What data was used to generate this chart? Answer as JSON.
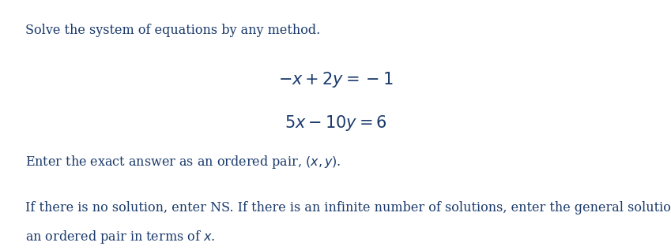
{
  "bg_color": "#ffffff",
  "text_color": "#1a3a6b",
  "line1": "Solve the system of equations by any method.",
  "eq1": "$-x + 2y = -1$",
  "eq2": "$5x - 10y = 6$",
  "line2": "Enter the exact answer as an ordered pair, $(x, y)$.",
  "line3": "If there is no solution, enter NS. If there is an infinite number of solutions, enter the general solution as",
  "line4": "an ordered pair in terms of $x$.",
  "font_size_main": 11.5,
  "font_size_eq": 15,
  "fig_width": 8.49,
  "fig_height": 3.17,
  "dpi": 100
}
